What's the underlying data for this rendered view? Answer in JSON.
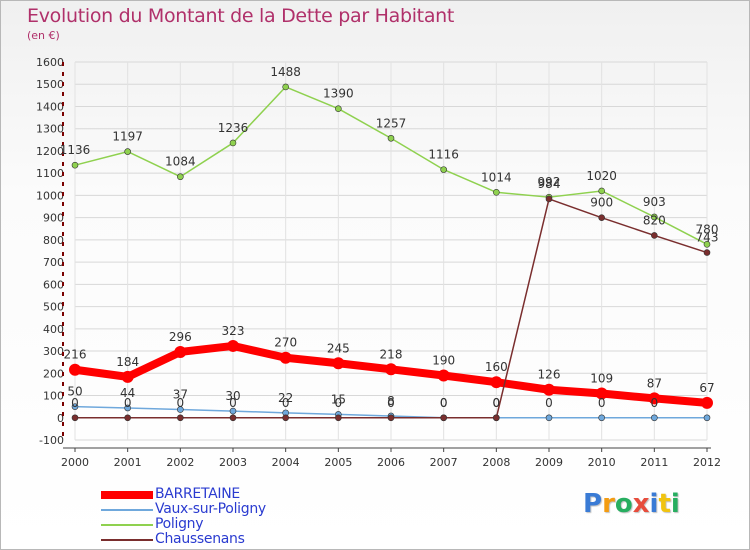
{
  "chart_data": {
    "type": "line",
    "title": "Evolution du Montant de la Dette par Habitant",
    "subtitle": "(en €)",
    "xlabel": "",
    "ylabel": "",
    "ylim": [
      -100,
      1600
    ],
    "yticks": [
      -100,
      0,
      100,
      200,
      300,
      400,
      500,
      600,
      700,
      800,
      900,
      1000,
      1100,
      1200,
      1300,
      1400,
      1500,
      1600
    ],
    "grid": true,
    "legend_position": "bottom-left",
    "categories": [
      "2000",
      "2001",
      "2002",
      "2003",
      "2004",
      "2005",
      "2006",
      "2007",
      "2008",
      "2009",
      "2010",
      "2011",
      "2012"
    ],
    "series": [
      {
        "name": "BARRETAINE",
        "color": "#ff0000",
        "values": [
          216,
          184,
          296,
          323,
          270,
          245,
          218,
          190,
          160,
          126,
          109,
          87,
          67
        ],
        "labels": [
          "216",
          "184",
          "296",
          "323",
          "270",
          "245",
          "218",
          "190",
          "160",
          "126",
          "109",
          "87",
          "67"
        ]
      },
      {
        "name": "Vaux-sur-Poligny",
        "color": "#6fa8dc",
        "values": [
          50,
          44,
          37,
          30,
          22,
          15,
          8,
          0,
          0,
          0,
          0,
          0,
          0
        ],
        "labels": [
          "50",
          "44",
          "37",
          "30",
          "22",
          "15",
          "8",
          "0",
          "0",
          "0",
          "0",
          "0",
          ""
        ]
      },
      {
        "name": "Poligny",
        "color": "#8fd14f",
        "values": [
          1136,
          1197,
          1084,
          1236,
          1488,
          1390,
          1257,
          1116,
          1014,
          992,
          1020,
          903,
          780
        ],
        "labels": [
          "1136",
          "1197",
          "1084",
          "1236",
          "1488",
          "1390",
          "1257",
          "1116",
          "1014",
          "992",
          "1020",
          "903",
          "780"
        ]
      },
      {
        "name": "Chaussenans",
        "color": "#7a2e2e",
        "values": [
          0,
          0,
          0,
          0,
          0,
          0,
          0,
          0,
          0,
          984,
          900,
          820,
          743
        ],
        "labels": [
          "0",
          "0",
          "0",
          "0",
          "0",
          "0",
          "0",
          "0",
          "0",
          "984",
          "900",
          "820",
          "743"
        ]
      }
    ]
  },
  "branding": {
    "logo_letters": [
      {
        "char": "P",
        "color": "#3a7bd5"
      },
      {
        "char": "r",
        "color": "#f39c12"
      },
      {
        "char": "o",
        "color": "#27ae60"
      },
      {
        "char": "x",
        "color": "#e74c3c"
      },
      {
        "char": "i",
        "color": "#3a7bd5"
      },
      {
        "char": "t",
        "color": "#f1c40f"
      },
      {
        "char": "i",
        "color": "#27ae60"
      }
    ]
  }
}
